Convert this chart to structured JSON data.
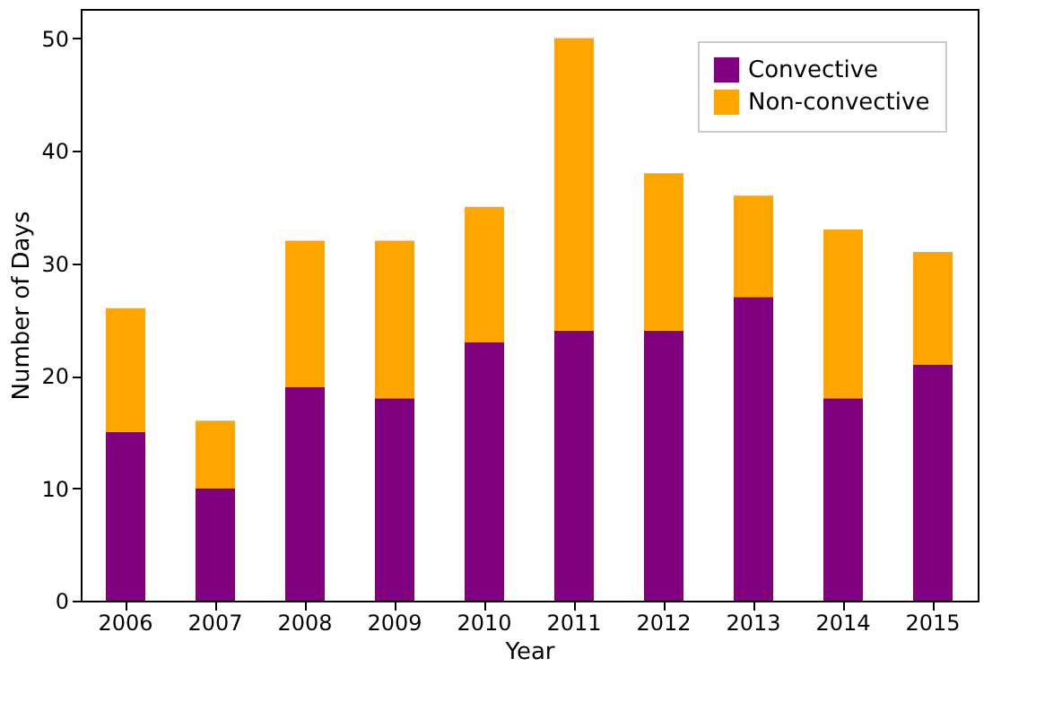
{
  "chart_data": {
    "type": "bar",
    "stacked": true,
    "xlabel": "Year",
    "ylabel": "Number of Days",
    "categories": [
      "2006",
      "2007",
      "2008",
      "2009",
      "2010",
      "2011",
      "2012",
      "2013",
      "2014",
      "2015"
    ],
    "series": [
      {
        "name": "Convective",
        "color": "#800080",
        "values": [
          15,
          10,
          19,
          18,
          23,
          24,
          24,
          27,
          18,
          21
        ]
      },
      {
        "name": "Non-convective",
        "color": "#ffa500",
        "values": [
          11,
          6,
          13,
          14,
          12,
          26,
          14,
          9,
          15,
          10
        ]
      }
    ],
    "ylim": [
      0,
      52.6
    ],
    "yticks": [
      0,
      10,
      20,
      30,
      40,
      50
    ],
    "grid": false,
    "legend": "top right"
  }
}
